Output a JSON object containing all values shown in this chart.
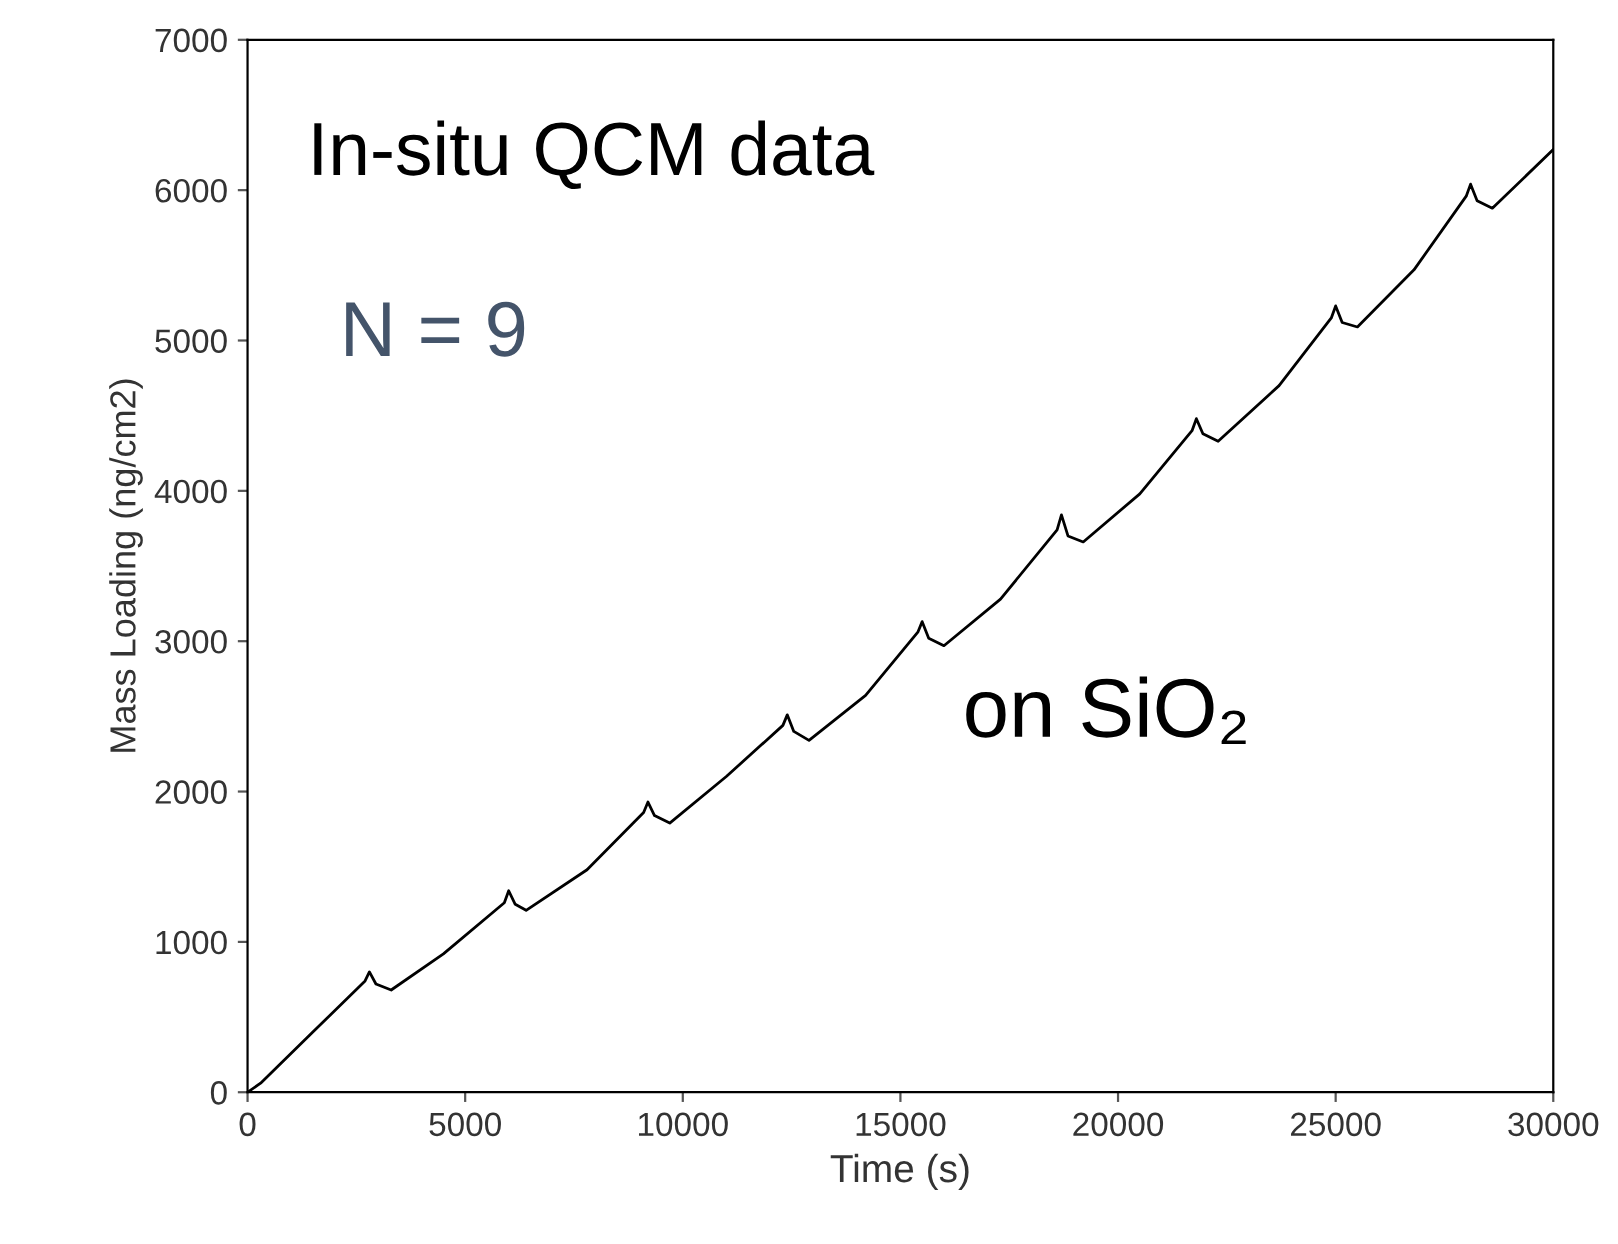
{
  "chart_data": {
    "type": "line",
    "xlabel": "Time (s)",
    "ylabel": "Mass Loading (ng/cm2)",
    "xlim": [
      0,
      30000
    ],
    "xticks": [
      0,
      5000,
      10000,
      15000,
      20000,
      25000,
      30000
    ],
    "ylim": [
      0,
      7000
    ],
    "yticks": [
      0,
      1000,
      2000,
      3000,
      4000,
      5000,
      6000,
      7000
    ],
    "grid": false,
    "marker": "none",
    "line_style": "solid",
    "x": [
      0,
      300,
      1500,
      2700,
      2800,
      2950,
      3300,
      4500,
      5900,
      6000,
      6150,
      6400,
      7800,
      9100,
      9200,
      9350,
      9700,
      11000,
      12300,
      12400,
      12550,
      12900,
      14200,
      15400,
      15500,
      15650,
      16000,
      17300,
      18600,
      18700,
      18850,
      19200,
      20500,
      21700,
      21800,
      21950,
      22300,
      23700,
      24900,
      25000,
      25150,
      25500,
      26800,
      28000,
      28100,
      28250,
      28600,
      30000
    ],
    "series": [
      {
        "color": "#000000",
        "values": [
          0,
          60,
          400,
          740,
          800,
          720,
          680,
          920,
          1260,
          1340,
          1250,
          1210,
          1480,
          1860,
          1930,
          1840,
          1790,
          2100,
          2440,
          2510,
          2400,
          2340,
          2640,
          3060,
          3130,
          3020,
          2970,
          3280,
          3740,
          3840,
          3700,
          3660,
          3980,
          4400,
          4480,
          4380,
          4330,
          4700,
          5150,
          5230,
          5120,
          5090,
          5470,
          5960,
          6040,
          5930,
          5880,
          6270
        ]
      }
    ],
    "annotations": [
      "In-situ QCM data",
      "N = 9",
      "on SiO₂"
    ]
  }
}
